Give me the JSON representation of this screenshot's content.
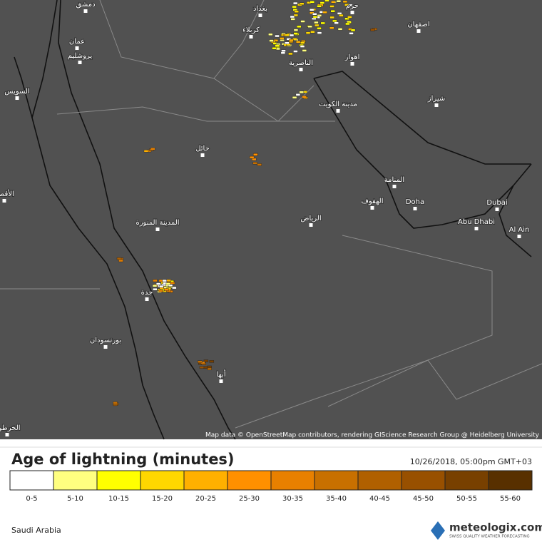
{
  "map": {
    "cities": [
      "دمشق",
      "عمان",
      "يروشليم",
      "بغداد",
      "كربلاء",
      "اصفهان",
      "اهواز",
      "الناصرية",
      "مدينة الكويت",
      "شيراز",
      "حائل",
      "المنامة",
      "الهفوف",
      "Doha",
      "Dubai",
      "Abu Dhabi",
      "Al Ain",
      "الرياض",
      "المدينة المنورة",
      "جدة",
      "بورتسودان",
      "أبها",
      "السويس",
      "الأقصر",
      "الخرطوم",
      "حرم"
    ],
    "attribution": "Map data © OpenStreetMap contributors, rendering GIScience Research Group @ Heidelberg University"
  },
  "legend": {
    "title": "Age of lightning (minutes)",
    "timestamp": "10/26/2018, 05:00pm GMT+03",
    "items": [
      {
        "label": "0-5",
        "color": "#ffffff"
      },
      {
        "label": "5-10",
        "color": "#ffff80"
      },
      {
        "label": "10-15",
        "color": "#ffff00"
      },
      {
        "label": "15-20",
        "color": "#ffd700"
      },
      {
        "label": "20-25",
        "color": "#ffb000"
      },
      {
        "label": "25-30",
        "color": "#ff9000"
      },
      {
        "label": "30-35",
        "color": "#e88000"
      },
      {
        "label": "35-40",
        "color": "#c87000"
      },
      {
        "label": "40-45",
        "color": "#b06000"
      },
      {
        "label": "45-50",
        "color": "#985000"
      },
      {
        "label": "50-55",
        "color": "#784000"
      },
      {
        "label": "55-60",
        "color": "#583000"
      }
    ]
  },
  "footer": {
    "region": "Saudi Arabia",
    "brand": "meteologix.com",
    "tagline": "SWISS QUALITY WEATHER FORECASTING"
  }
}
